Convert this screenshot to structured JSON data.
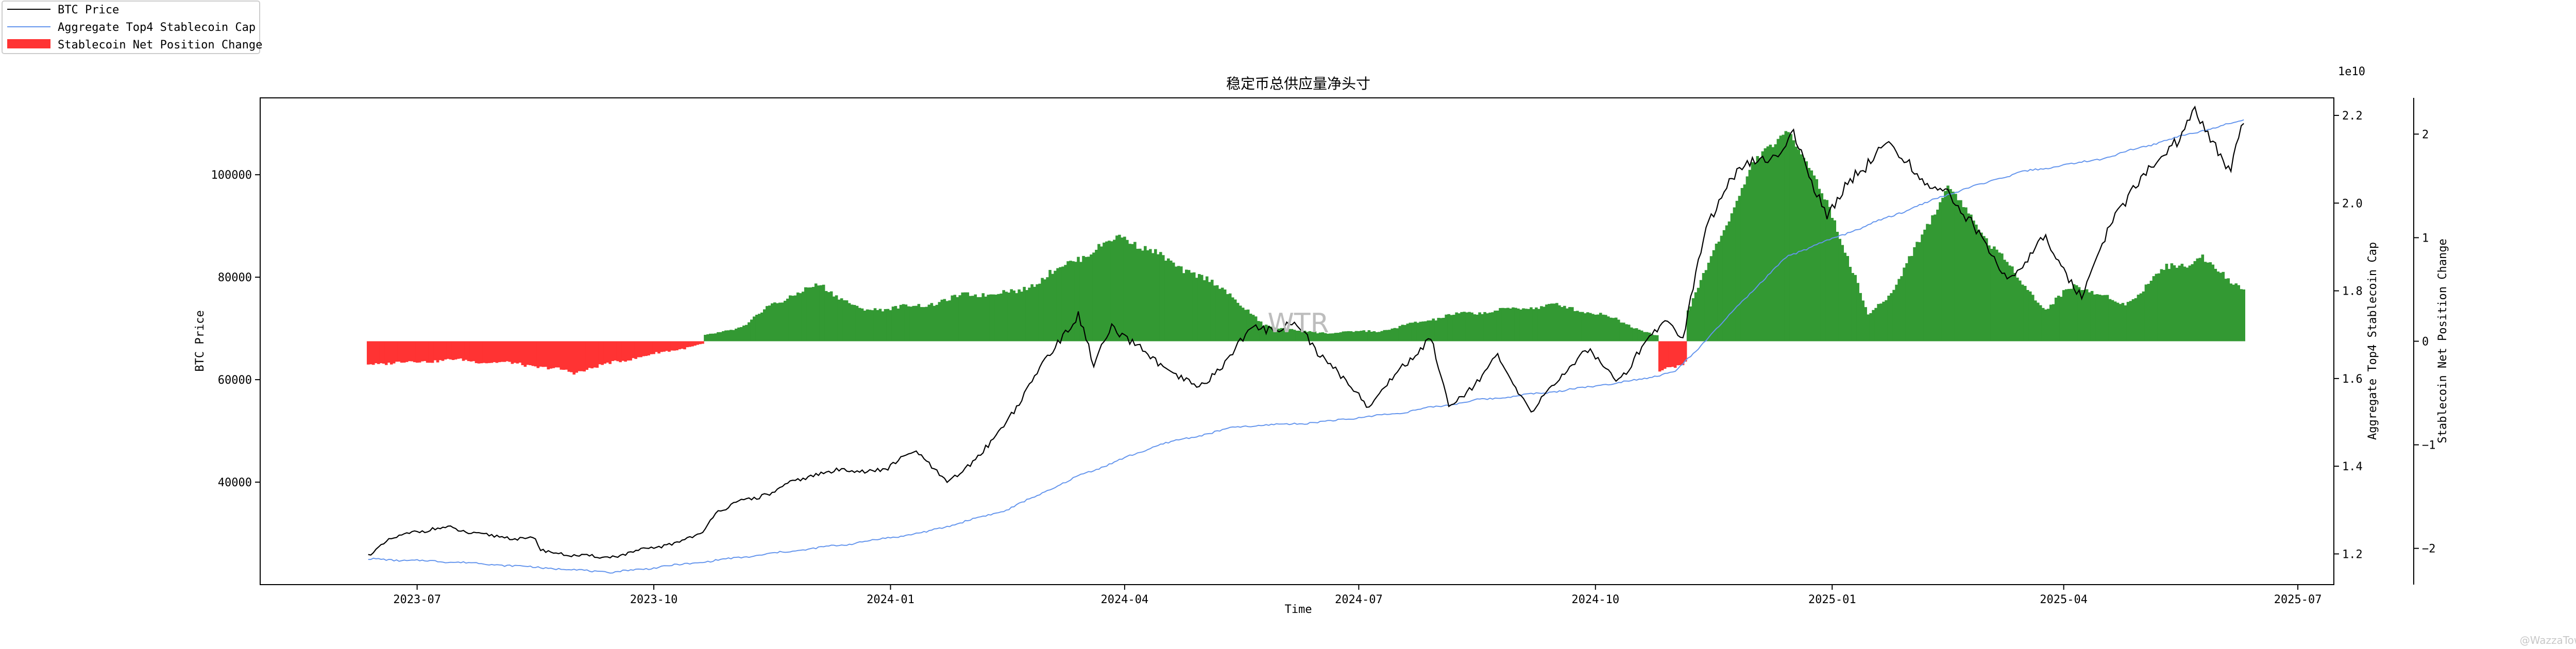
{
  "chart_data": {
    "type": "line",
    "title": "稳定币总供应量净头寸",
    "xlabel": "Time",
    "x_range": [
      "2023-05-01",
      "2025-07-15"
    ],
    "x_ticks": [
      {
        "date": "2023-07-01",
        "label": "2023-07"
      },
      {
        "date": "2023-10-01",
        "label": "2023-10"
      },
      {
        "date": "2024-01-01",
        "label": "2024-01"
      },
      {
        "date": "2024-04-01",
        "label": "2024-04"
      },
      {
        "date": "2024-07-01",
        "label": "2024-07"
      },
      {
        "date": "2024-10-01",
        "label": "2024-10"
      },
      {
        "date": "2025-01-01",
        "label": "2025-01"
      },
      {
        "date": "2025-04-01",
        "label": "2025-04"
      },
      {
        "date": "2025-07-01",
        "label": "2025-07"
      }
    ],
    "axes": {
      "left": {
        "label": "BTC Price",
        "range": [
          20000,
          115000
        ],
        "ticks": [
          40000,
          60000,
          80000,
          100000
        ]
      },
      "right1": {
        "label": "Aggregate Top4 Stablecoin Cap",
        "range": [
          1.13,
          2.24
        ],
        "ticks": [
          1.2,
          1.4,
          1.6,
          1.8,
          2.0,
          2.2
        ],
        "tick_labels": [
          "1.2",
          "1.4",
          "1.6",
          "1.8",
          "2.0",
          "2.2"
        ],
        "offset_text": "1e10"
      },
      "right2": {
        "label": "Stablecoin Net Position Change",
        "range": [
          -2.35,
          2.35
        ],
        "ticks": [
          -2,
          -1,
          0,
          1,
          2
        ],
        "tick_labels": [
          "−2",
          "−1",
          "0",
          "1",
          "2"
        ]
      }
    },
    "legend": {
      "placement": "top-left",
      "entries": [
        {
          "label": "BTC Price",
          "color": "#000000",
          "kind": "line"
        },
        {
          "label": "Aggregate Top4 Stablecoin Cap",
          "color": "#6495ED",
          "kind": "line"
        },
        {
          "label": "Stablecoin Net Position Change",
          "color": "#FF3333",
          "kind": "patch"
        }
      ]
    },
    "colors": {
      "positive": "#339933",
      "negative": "#FF3333",
      "btc": "#000000",
      "cap": "#6495ED"
    },
    "watermark": "WTR",
    "credit": "@WazzaTowai",
    "series": [
      {
        "name": "BTC Price",
        "axis": "left",
        "points": [
          [
            "2023-06-12",
            25900
          ],
          [
            "2023-06-20",
            28500
          ],
          [
            "2023-06-30",
            30500
          ],
          [
            "2023-07-14",
            31000
          ],
          [
            "2023-07-31",
            29300
          ],
          [
            "2023-08-16",
            29000
          ],
          [
            "2023-08-18",
            26500
          ],
          [
            "2023-09-11",
            25200
          ],
          [
            "2023-09-30",
            27000
          ],
          [
            "2023-10-20",
            29800
          ],
          [
            "2023-10-25",
            34500
          ],
          [
            "2023-11-10",
            37000
          ],
          [
            "2023-12-05",
            42000
          ],
          [
            "2023-12-31",
            42500
          ],
          [
            "2024-01-11",
            46500
          ],
          [
            "2024-01-23",
            39500
          ],
          [
            "2024-02-10",
            48000
          ],
          [
            "2024-02-28",
            62000
          ],
          [
            "2024-03-14",
            73000
          ],
          [
            "2024-03-20",
            62500
          ],
          [
            "2024-03-27",
            70500
          ],
          [
            "2024-04-13",
            63500
          ],
          [
            "2024-04-30",
            58000
          ],
          [
            "2024-05-21",
            70000
          ],
          [
            "2024-06-07",
            70500
          ],
          [
            "2024-06-24",
            60500
          ],
          [
            "2024-07-05",
            55000
          ],
          [
            "2024-07-29",
            68500
          ],
          [
            "2024-08-05",
            54500
          ],
          [
            "2024-08-24",
            64000
          ],
          [
            "2024-09-06",
            53800
          ],
          [
            "2024-09-27",
            66000
          ],
          [
            "2024-10-10",
            60000
          ],
          [
            "2024-10-29",
            72500
          ],
          [
            "2024-11-04",
            68000
          ],
          [
            "2024-11-13",
            90000
          ],
          [
            "2024-11-22",
            99000
          ],
          [
            "2024-12-05",
            103000
          ],
          [
            "2024-12-17",
            107000
          ],
          [
            "2024-12-30",
            92500
          ],
          [
            "2025-01-20",
            106000
          ],
          [
            "2025-01-31",
            102000
          ],
          [
            "2025-02-24",
            91500
          ],
          [
            "2025-03-10",
            79000
          ],
          [
            "2025-03-24",
            87500
          ],
          [
            "2025-04-08",
            76500
          ],
          [
            "2025-04-22",
            93500
          ],
          [
            "2025-05-08",
            103000
          ],
          [
            "2025-05-22",
            111500
          ],
          [
            "2025-06-05",
            101500
          ],
          [
            "2025-06-10",
            110000
          ]
        ]
      },
      {
        "name": "Aggregate Top4 Stablecoin Cap",
        "axis": "right1",
        "points": [
          [
            "2023-06-12",
            1.188
          ],
          [
            "2023-07-15",
            1.182
          ],
          [
            "2023-08-15",
            1.17
          ],
          [
            "2023-09-15",
            1.158
          ],
          [
            "2023-10-15",
            1.178
          ],
          [
            "2023-11-15",
            1.2
          ],
          [
            "2023-12-15",
            1.222
          ],
          [
            "2024-01-15",
            1.25
          ],
          [
            "2024-02-15",
            1.3
          ],
          [
            "2024-03-15",
            1.38
          ],
          [
            "2024-04-15",
            1.45
          ],
          [
            "2024-05-15",
            1.49
          ],
          [
            "2024-06-15",
            1.5
          ],
          [
            "2024-07-15",
            1.52
          ],
          [
            "2024-08-15",
            1.55
          ],
          [
            "2024-09-15",
            1.57
          ],
          [
            "2024-10-15",
            1.595
          ],
          [
            "2024-11-01",
            1.615
          ],
          [
            "2024-11-15",
            1.7
          ],
          [
            "2024-12-01",
            1.8
          ],
          [
            "2024-12-15",
            1.88
          ],
          [
            "2025-01-15",
            1.95
          ],
          [
            "2025-02-15",
            2.02
          ],
          [
            "2025-03-15",
            2.07
          ],
          [
            "2025-04-15",
            2.1
          ],
          [
            "2025-05-15",
            2.15
          ],
          [
            "2025-06-10",
            2.19
          ]
        ]
      },
      {
        "name": "Stablecoin Net Position Change",
        "axis": "right2",
        "kind": "bars",
        "points": [
          [
            "2023-06-12",
            -0.22
          ],
          [
            "2023-07-15",
            -0.18
          ],
          [
            "2023-08-10",
            -0.22
          ],
          [
            "2023-08-31",
            -0.3
          ],
          [
            "2023-09-20",
            -0.18
          ],
          [
            "2023-10-20",
            -0.03
          ],
          [
            "2023-10-21",
            0.05
          ],
          [
            "2023-11-06",
            0.15
          ],
          [
            "2023-11-15",
            0.35
          ],
          [
            "2023-12-05",
            0.55
          ],
          [
            "2023-12-20",
            0.3
          ],
          [
            "2024-01-15",
            0.35
          ],
          [
            "2024-01-31",
            0.45
          ],
          [
            "2024-02-20",
            0.48
          ],
          [
            "2024-03-10",
            0.75
          ],
          [
            "2024-03-31",
            1.02
          ],
          [
            "2024-04-20",
            0.75
          ],
          [
            "2024-05-10",
            0.5
          ],
          [
            "2024-05-25",
            0.15
          ],
          [
            "2024-06-15",
            0.08
          ],
          [
            "2024-07-10",
            0.1
          ],
          [
            "2024-08-05",
            0.25
          ],
          [
            "2024-08-25",
            0.3
          ],
          [
            "2024-09-15",
            0.35
          ],
          [
            "2024-10-05",
            0.25
          ],
          [
            "2024-10-25",
            0.05
          ],
          [
            "2024-10-26",
            -0.3
          ],
          [
            "2024-11-05",
            -0.2
          ],
          [
            "2024-11-06",
            0.3
          ],
          [
            "2024-11-15",
            0.8
          ],
          [
            "2024-12-01",
            1.7
          ],
          [
            "2024-12-15",
            2.05
          ],
          [
            "2024-12-31",
            1.3
          ],
          [
            "2025-01-15",
            0.25
          ],
          [
            "2025-01-25",
            0.5
          ],
          [
            "2025-02-15",
            1.5
          ],
          [
            "2025-03-05",
            0.9
          ],
          [
            "2025-03-25",
            0.3
          ],
          [
            "2025-04-05",
            0.55
          ],
          [
            "2025-04-25",
            0.35
          ],
          [
            "2025-05-10",
            0.7
          ],
          [
            "2025-05-25",
            0.8
          ],
          [
            "2025-06-10",
            0.5
          ]
        ]
      }
    ]
  }
}
